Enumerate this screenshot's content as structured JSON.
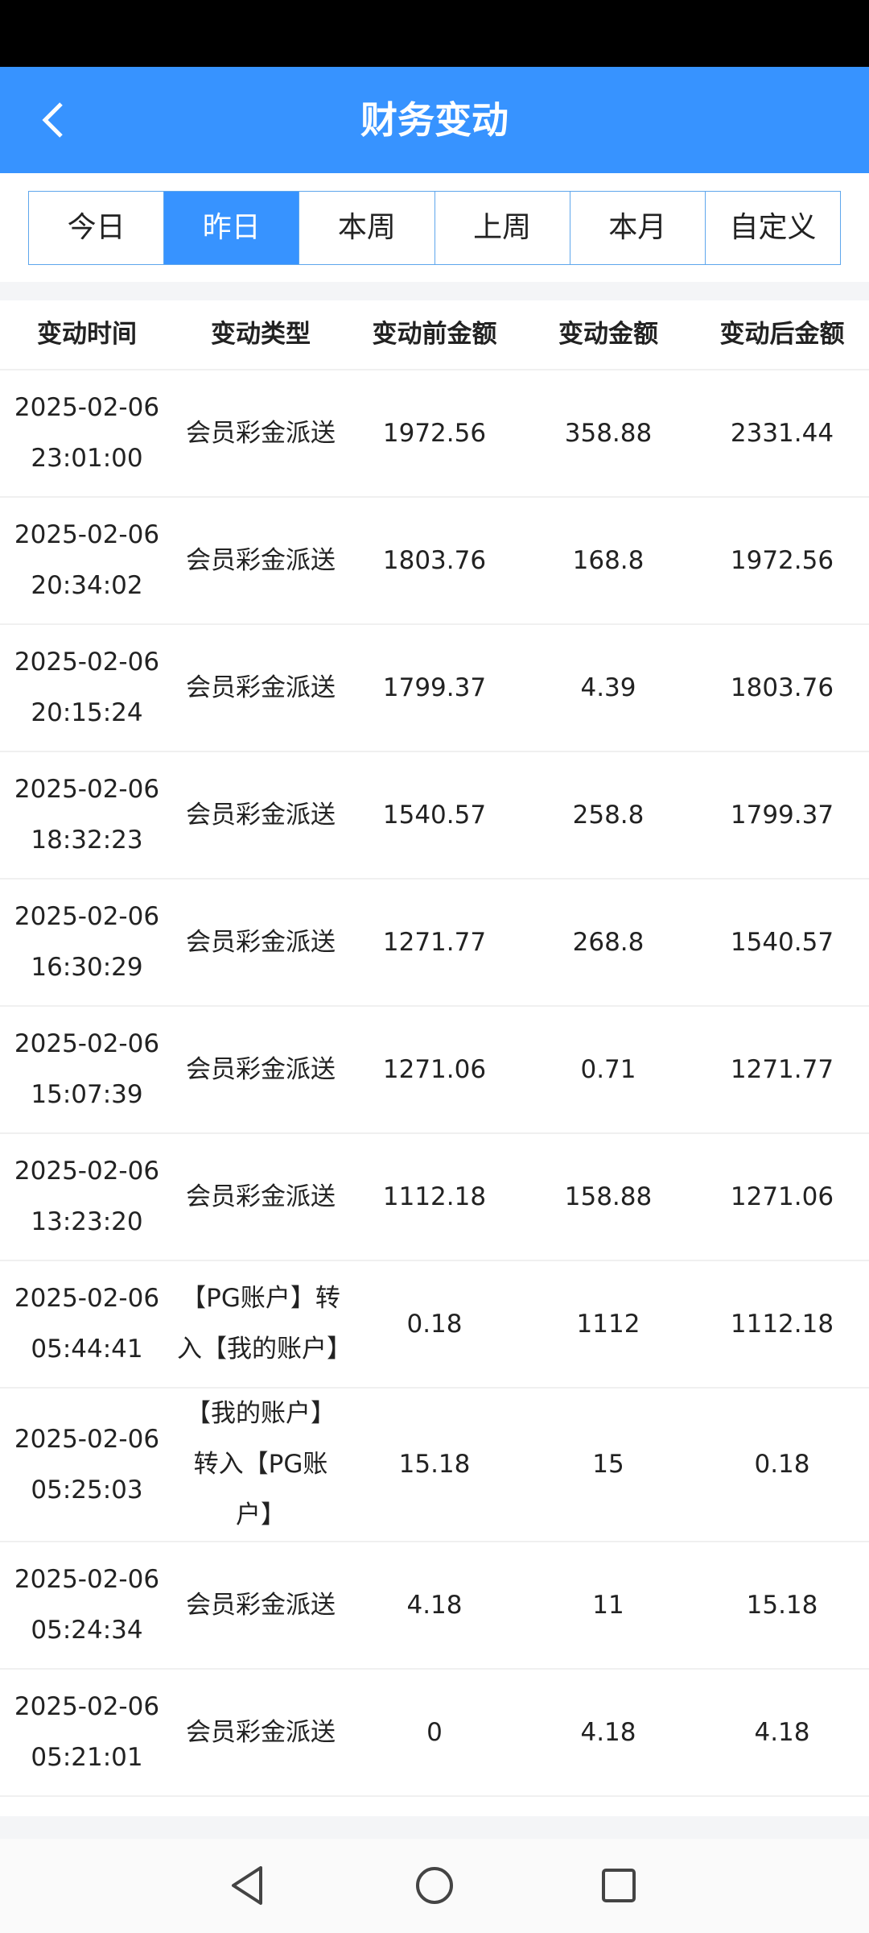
{
  "header": {
    "title": "财务变动",
    "back_icon": "chevron-left-icon"
  },
  "tabs": [
    {
      "label": "今日",
      "active": false
    },
    {
      "label": "昨日",
      "active": true
    },
    {
      "label": "本周",
      "active": false
    },
    {
      "label": "上周",
      "active": false
    },
    {
      "label": "本月",
      "active": false
    },
    {
      "label": "自定义",
      "active": false
    }
  ],
  "table": {
    "columns": [
      "变动时间",
      "变动类型",
      "变动前金额",
      "变动金额",
      "变动后金额"
    ],
    "rows": [
      {
        "date": "2025-02-06",
        "time": "23:01:00",
        "type": "会员彩金派送",
        "before": "1972.56",
        "amount": "358.88",
        "after": "2331.44"
      },
      {
        "date": "2025-02-06",
        "time": "20:34:02",
        "type": "会员彩金派送",
        "before": "1803.76",
        "amount": "168.8",
        "after": "1972.56"
      },
      {
        "date": "2025-02-06",
        "time": "20:15:24",
        "type": "会员彩金派送",
        "before": "1799.37",
        "amount": "4.39",
        "after": "1803.76"
      },
      {
        "date": "2025-02-06",
        "time": "18:32:23",
        "type": "会员彩金派送",
        "before": "1540.57",
        "amount": "258.8",
        "after": "1799.37"
      },
      {
        "date": "2025-02-06",
        "time": "16:30:29",
        "type": "会员彩金派送",
        "before": "1271.77",
        "amount": "268.8",
        "after": "1540.57"
      },
      {
        "date": "2025-02-06",
        "time": "15:07:39",
        "type": "会员彩金派送",
        "before": "1271.06",
        "amount": "0.71",
        "after": "1271.77"
      },
      {
        "date": "2025-02-06",
        "time": "13:23:20",
        "type": "会员彩金派送",
        "before": "1112.18",
        "amount": "158.88",
        "after": "1271.06"
      },
      {
        "date": "2025-02-06",
        "time": "05:44:41",
        "type": "【PG账户】转入【我的账户】",
        "before": "0.18",
        "amount": "1112",
        "after": "1112.18"
      },
      {
        "date": "2025-02-06",
        "time": "05:25:03",
        "type": "【我的账户】转入【PG账户】",
        "before": "15.18",
        "amount": "15",
        "after": "0.18"
      },
      {
        "date": "2025-02-06",
        "time": "05:24:34",
        "type": "会员彩金派送",
        "before": "4.18",
        "amount": "11",
        "after": "15.18"
      },
      {
        "date": "2025-02-06",
        "time": "05:21:01",
        "type": "会员彩金派送",
        "before": "0",
        "amount": "4.18",
        "after": "4.18"
      }
    ]
  },
  "navbar": {
    "icons": [
      "back-triangle-icon",
      "home-circle-icon",
      "recents-square-icon"
    ]
  },
  "colors": {
    "primary": "#3793ff",
    "tab_border": "#5ea6ec"
  }
}
